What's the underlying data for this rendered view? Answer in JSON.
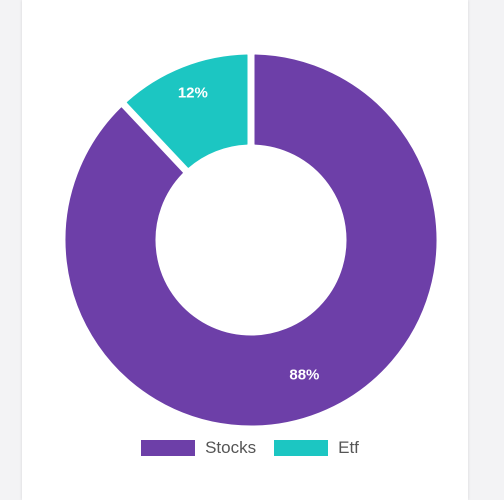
{
  "chart_data": {
    "type": "pie",
    "variant": "donut",
    "labels": [
      "Stocks",
      "Etf"
    ],
    "values": [
      88,
      12
    ],
    "value_labels": [
      "88%",
      "12%"
    ],
    "colors": [
      "#6d3fa8",
      "#1cc6c2"
    ],
    "legend_position": "bottom"
  },
  "legend": {
    "items": [
      {
        "label": "Stocks",
        "color": "#6d3fa8"
      },
      {
        "label": "Etf",
        "color": "#1cc6c2"
      }
    ]
  }
}
